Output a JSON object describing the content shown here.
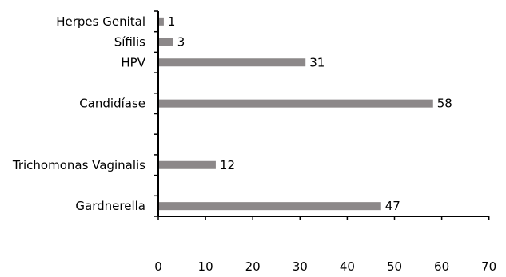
{
  "chart_data": {
    "type": "bar",
    "orientation": "horizontal",
    "categories": [
      "Herpes Genital",
      "Sífilis",
      "HPV",
      "",
      "Candidíase",
      "",
      "",
      "Trichomonas Vaginalis",
      "",
      "Gardnerella"
    ],
    "values": [
      1,
      3,
      31,
      null,
      58,
      null,
      null,
      12,
      null,
      47
    ],
    "value_labels": [
      "1",
      "3",
      "31",
      "",
      "58",
      "",
      "",
      "12",
      "",
      "47"
    ],
    "xlim": [
      0,
      70
    ],
    "x_ticks": [
      0,
      10,
      20,
      30,
      40,
      50,
      60,
      70
    ],
    "title": "",
    "xlabel": "",
    "ylabel": "",
    "grid": false,
    "legend": "none",
    "bar_color": "#8c8889"
  }
}
